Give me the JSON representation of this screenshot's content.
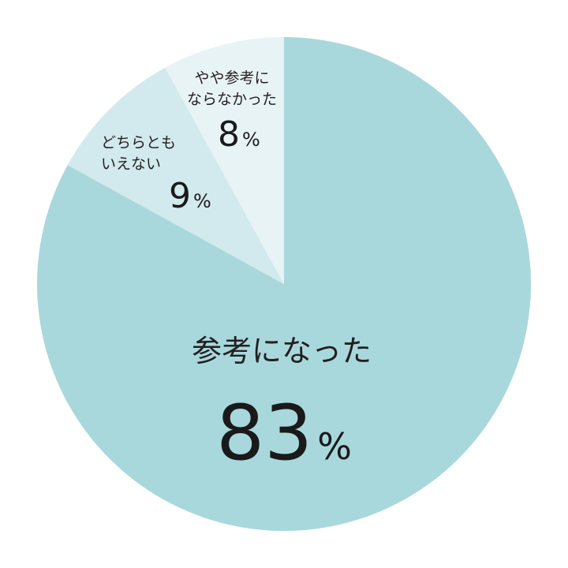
{
  "chart_data": {
    "type": "pie",
    "title": "",
    "legend": "none",
    "slices": [
      {
        "label": "参考になった",
        "value": 83,
        "color": "#a8d8dc"
      },
      {
        "label": "どちらとも\nいえない",
        "value": 9,
        "color": "#d2eaed"
      },
      {
        "label": "やや参考に\nならなかった",
        "value": 8,
        "color": "#e8f3f5"
      }
    ],
    "unit": "%",
    "start": "12 o'clock",
    "direction": "clockwise"
  }
}
